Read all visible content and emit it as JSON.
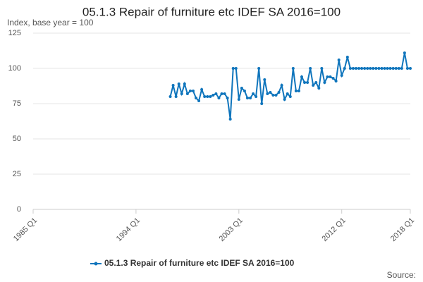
{
  "chart_data": {
    "type": "line",
    "title": "05.1.3 Repair of furniture etc IDEF SA 2016=100",
    "y_label": "Index, base year = 100",
    "source": "Source:",
    "categories": [
      "1985 Q1",
      null,
      null,
      null,
      null,
      null,
      null,
      null,
      null,
      null,
      null,
      null,
      null,
      null,
      null,
      null,
      null,
      null,
      null,
      null,
      null,
      null,
      null,
      null,
      null,
      null,
      null,
      null,
      null,
      null,
      null,
      null,
      null,
      null,
      null,
      null,
      "1994 Q1",
      null,
      null,
      null,
      null,
      null,
      null,
      null,
      null,
      null,
      null,
      null,
      null,
      null,
      null,
      null,
      null,
      null,
      null,
      null,
      null,
      null,
      null,
      null,
      null,
      null,
      null,
      null,
      null,
      null,
      null,
      null,
      null,
      null,
      null,
      null,
      "2003 Q1",
      null,
      null,
      null,
      null,
      null,
      null,
      null,
      null,
      null,
      null,
      null,
      null,
      null,
      null,
      null,
      null,
      null,
      null,
      null,
      null,
      null,
      null,
      null,
      null,
      null,
      null,
      null,
      null,
      null,
      null,
      null,
      null,
      null,
      null,
      null,
      "2012 Q1",
      null,
      null,
      null,
      null,
      null,
      null,
      null,
      null,
      null,
      null,
      null,
      null,
      null,
      null,
      null,
      null,
      null,
      null,
      null,
      null,
      null,
      null,
      null,
      "2018 Q1"
    ],
    "series": [
      {
        "name": "05.1.3 Repair of furniture etc IDEF SA 2016=100",
        "color": "#0f75bc",
        "values": [
          null,
          null,
          null,
          null,
          null,
          null,
          null,
          null,
          null,
          null,
          null,
          null,
          null,
          null,
          null,
          null,
          null,
          null,
          null,
          null,
          null,
          null,
          null,
          null,
          null,
          null,
          null,
          null,
          null,
          null,
          null,
          null,
          null,
          null,
          null,
          null,
          null,
          null,
          null,
          null,
          null,
          null,
          null,
          null,
          null,
          null,
          null,
          null,
          80,
          88,
          80,
          89,
          82,
          89,
          82,
          84,
          84,
          79,
          77,
          85,
          80,
          80,
          80,
          81,
          82,
          79,
          82,
          82,
          79,
          64,
          100,
          100,
          78,
          86,
          84,
          79,
          79,
          82,
          80,
          100,
          75,
          92,
          82,
          83,
          81,
          81,
          83,
          88,
          78,
          82,
          80,
          100,
          84,
          84,
          94,
          90,
          90,
          100,
          88,
          90,
          86,
          100,
          90,
          94,
          94,
          93,
          91,
          106,
          95,
          100,
          108,
          100,
          100,
          100,
          100,
          100,
          100,
          100,
          100,
          100,
          100,
          100,
          100,
          100,
          100,
          100,
          100,
          100,
          100,
          100,
          111,
          100,
          100
        ]
      }
    ],
    "ylim": [
      0,
      125
    ],
    "yticks": [
      0,
      25,
      50,
      75,
      100,
      125
    ],
    "grid": true
  }
}
